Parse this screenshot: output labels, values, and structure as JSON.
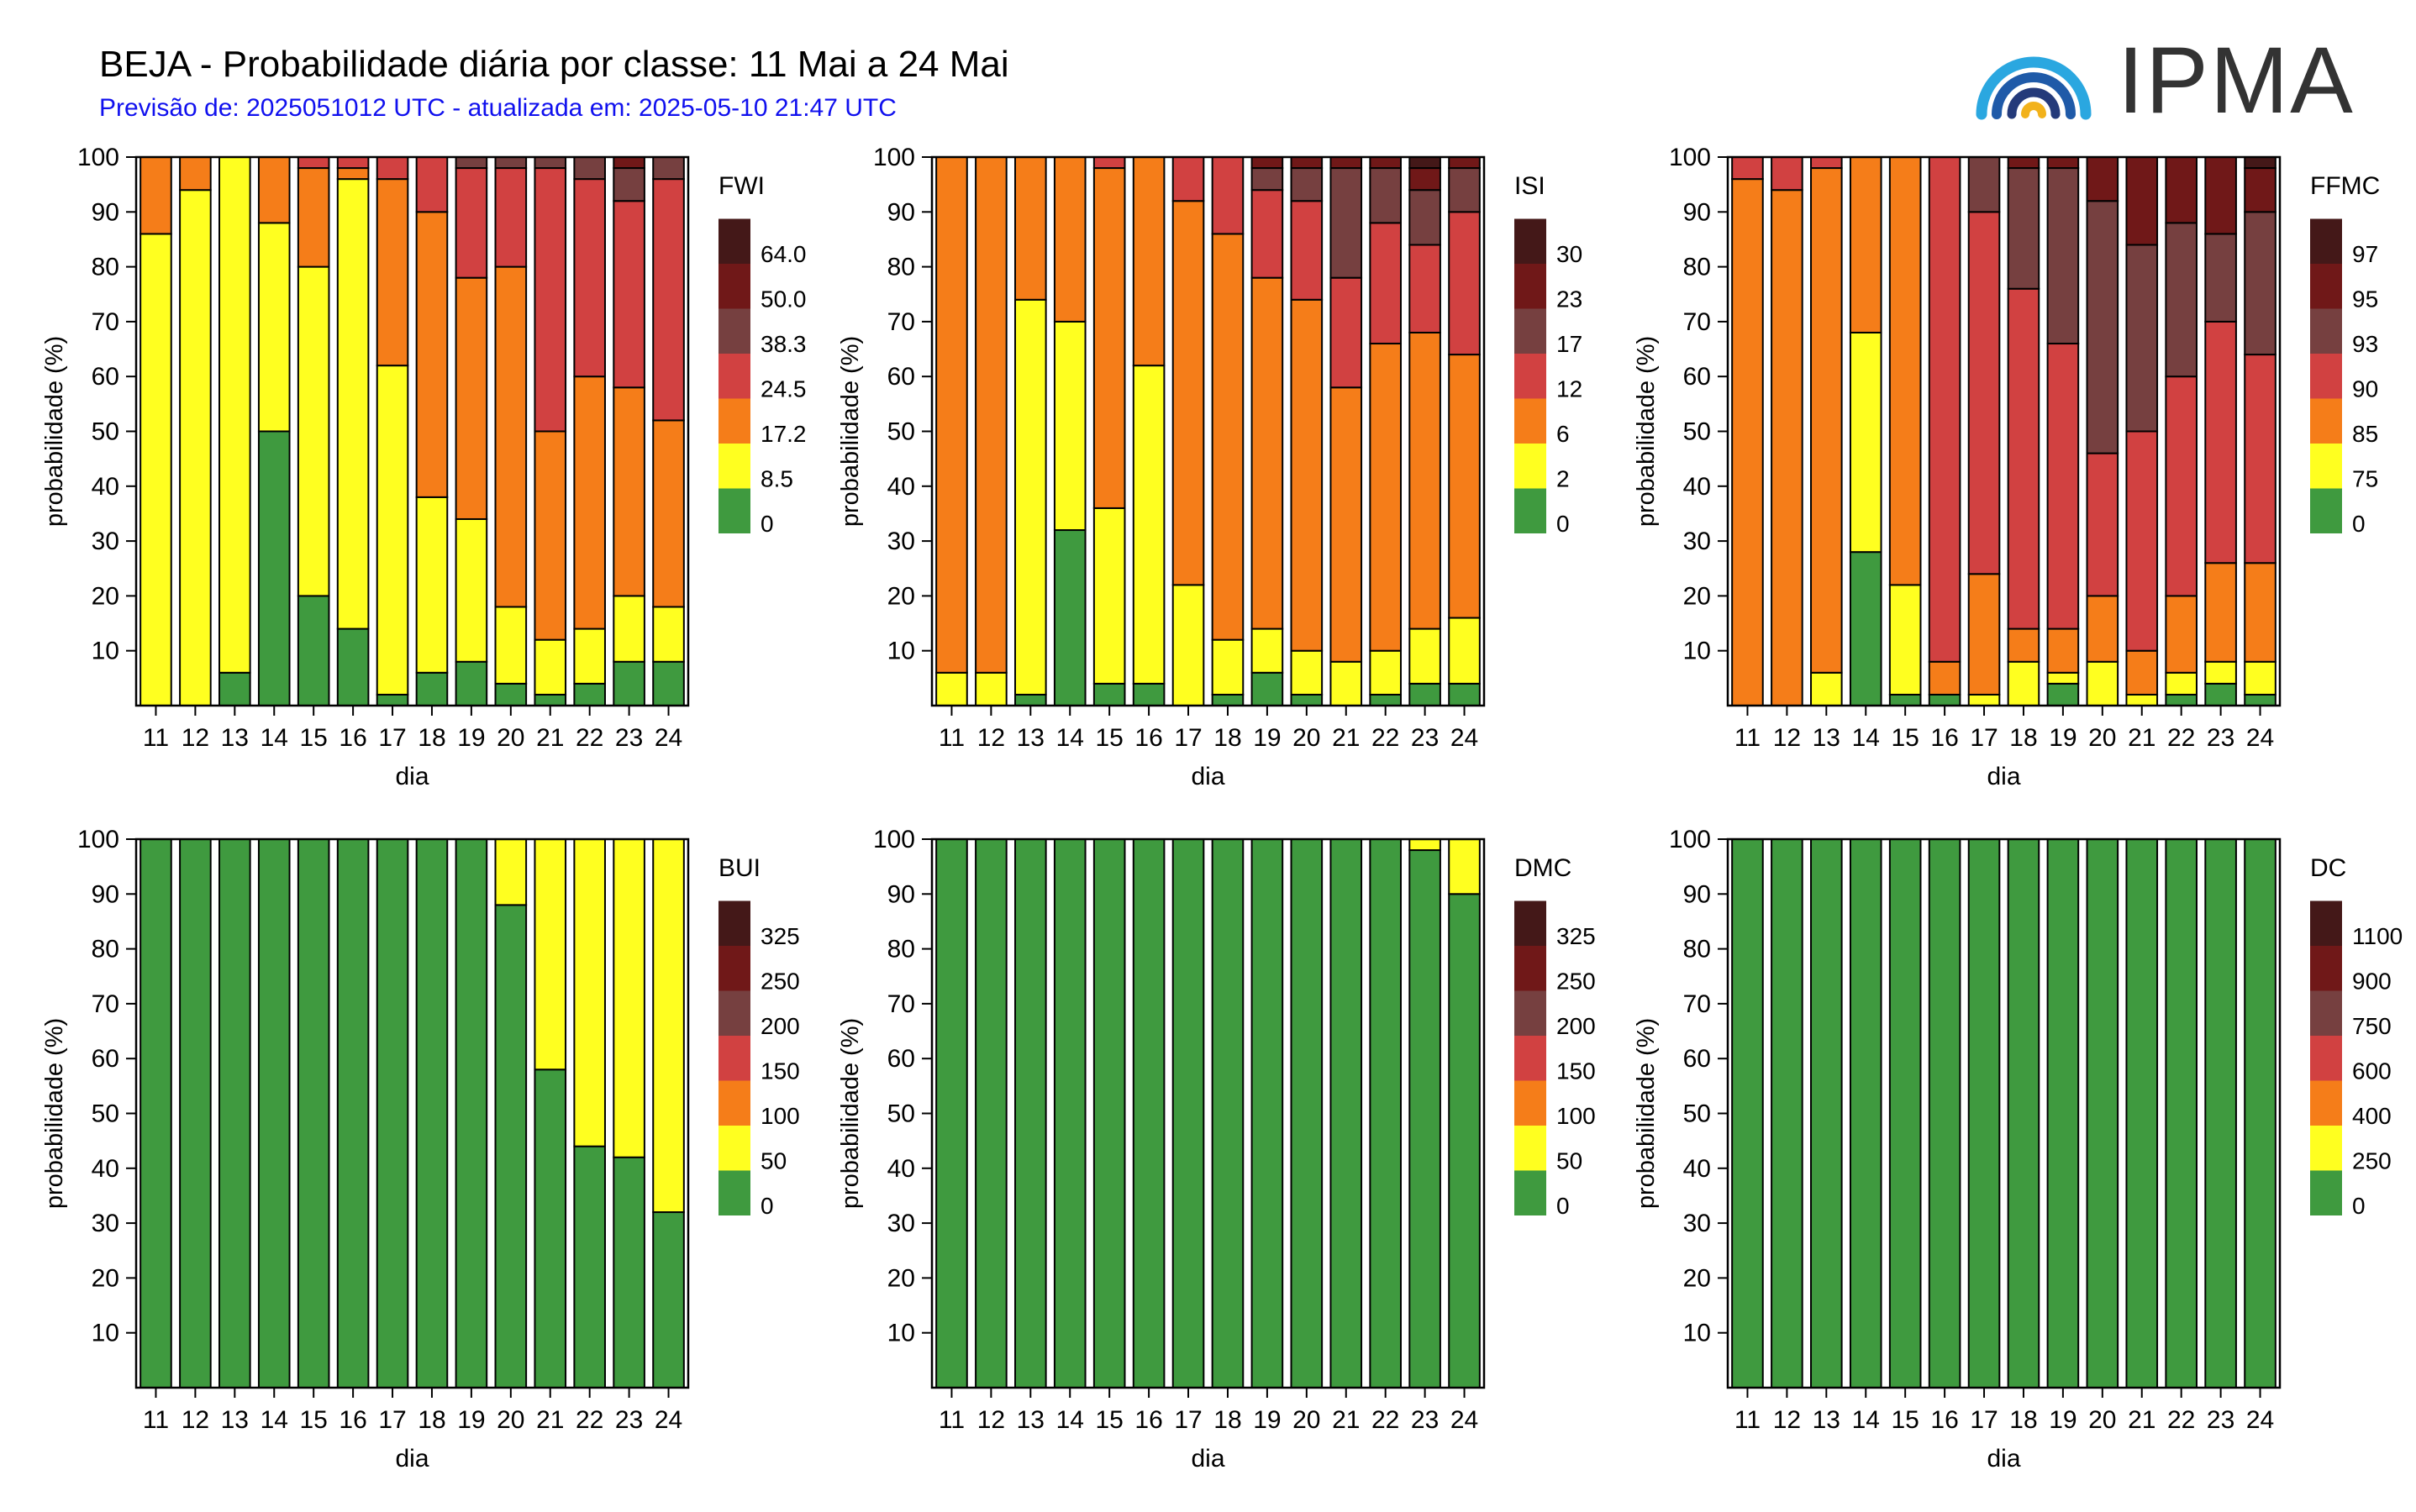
{
  "header": {
    "title": "BEJA - Probabilidade diária por classe: 11 Mai a 24 Mai",
    "subtitle": "Previsão de: 2025051012 UTC - atualizada em: 2025-05-10 21:47 UTC",
    "logo_text": "IPMA"
  },
  "class_colors": [
    "#3f9a3f",
    "#ffff20",
    "#f57d19",
    "#d14141",
    "#764040",
    "#701818",
    "#441818"
  ],
  "chart_data": [
    {
      "type": "bar",
      "stacked": true,
      "ylabel": "probabilidade (%)",
      "xlabel": "dia",
      "ylim": [
        0,
        100
      ],
      "yticks": [
        10,
        20,
        30,
        40,
        50,
        60,
        70,
        80,
        90,
        100
      ],
      "categories": [
        "11",
        "12",
        "13",
        "14",
        "15",
        "16",
        "17",
        "18",
        "19",
        "20",
        "21",
        "22",
        "23",
        "24"
      ],
      "legend_title": "FWI",
      "legend_labels": [
        "0",
        "8.5",
        "17.2",
        "24.5",
        "38.3",
        "50.0",
        "64.0"
      ],
      "series": [
        {
          "values": [
            0,
            0,
            6,
            50,
            20,
            14,
            2,
            6,
            8,
            4,
            2,
            4,
            8,
            8
          ]
        },
        {
          "values": [
            86,
            94,
            94,
            38,
            60,
            82,
            60,
            32,
            26,
            14,
            10,
            10,
            12,
            10
          ]
        },
        {
          "values": [
            14,
            6,
            0,
            12,
            18,
            2,
            34,
            52,
            44,
            62,
            38,
            46,
            38,
            34
          ]
        },
        {
          "values": [
            0,
            0,
            0,
            0,
            2,
            2,
            4,
            10,
            20,
            18,
            48,
            36,
            34,
            44
          ]
        },
        {
          "values": [
            0,
            0,
            0,
            0,
            0,
            0,
            0,
            0,
            2,
            2,
            2,
            4,
            6,
            4
          ]
        },
        {
          "values": [
            0,
            0,
            0,
            0,
            0,
            0,
            0,
            0,
            0,
            0,
            0,
            0,
            2,
            0
          ]
        },
        {
          "values": [
            0,
            0,
            0,
            0,
            0,
            0,
            0,
            0,
            0,
            0,
            0,
            0,
            0,
            0
          ]
        }
      ]
    },
    {
      "type": "bar",
      "stacked": true,
      "ylabel": "probabilidade (%)",
      "xlabel": "dia",
      "ylim": [
        0,
        100
      ],
      "yticks": [
        10,
        20,
        30,
        40,
        50,
        60,
        70,
        80,
        90,
        100
      ],
      "categories": [
        "11",
        "12",
        "13",
        "14",
        "15",
        "16",
        "17",
        "18",
        "19",
        "20",
        "21",
        "22",
        "23",
        "24"
      ],
      "legend_title": "ISI",
      "legend_labels": [
        "0",
        "2",
        "6",
        "12",
        "17",
        "23",
        "30"
      ],
      "series": [
        {
          "values": [
            0,
            0,
            2,
            32,
            4,
            4,
            0,
            2,
            6,
            2,
            0,
            2,
            4,
            4
          ]
        },
        {
          "values": [
            6,
            6,
            72,
            38,
            32,
            58,
            22,
            10,
            8,
            8,
            8,
            8,
            10,
            12
          ]
        },
        {
          "values": [
            94,
            94,
            26,
            30,
            62,
            38,
            70,
            74,
            64,
            64,
            50,
            56,
            54,
            48
          ]
        },
        {
          "values": [
            0,
            0,
            0,
            0,
            2,
            0,
            8,
            14,
            16,
            18,
            20,
            22,
            16,
            26
          ]
        },
        {
          "values": [
            0,
            0,
            0,
            0,
            0,
            0,
            0,
            0,
            4,
            6,
            20,
            10,
            10,
            8
          ]
        },
        {
          "values": [
            0,
            0,
            0,
            0,
            0,
            0,
            0,
            0,
            2,
            2,
            2,
            2,
            4,
            2
          ]
        },
        {
          "values": [
            0,
            0,
            0,
            0,
            0,
            0,
            0,
            0,
            0,
            0,
            0,
            0,
            2,
            0
          ]
        }
      ]
    },
    {
      "type": "bar",
      "stacked": true,
      "ylabel": "probabilidade (%)",
      "xlabel": "dia",
      "ylim": [
        0,
        100
      ],
      "yticks": [
        10,
        20,
        30,
        40,
        50,
        60,
        70,
        80,
        90,
        100
      ],
      "categories": [
        "11",
        "12",
        "13",
        "14",
        "15",
        "16",
        "17",
        "18",
        "19",
        "20",
        "21",
        "22",
        "23",
        "24"
      ],
      "legend_title": "FFMC",
      "legend_labels": [
        "0",
        "75",
        "85",
        "90",
        "93",
        "95",
        "97"
      ],
      "series": [
        {
          "values": [
            0,
            0,
            0,
            28,
            2,
            2,
            0,
            0,
            4,
            0,
            0,
            2,
            4,
            2
          ]
        },
        {
          "values": [
            0,
            0,
            6,
            40,
            20,
            0,
            2,
            8,
            2,
            8,
            2,
            4,
            4,
            6
          ]
        },
        {
          "values": [
            96,
            94,
            92,
            32,
            78,
            6,
            22,
            6,
            8,
            12,
            8,
            14,
            18,
            18
          ]
        },
        {
          "values": [
            4,
            6,
            2,
            0,
            0,
            92,
            66,
            62,
            52,
            26,
            40,
            40,
            44,
            38
          ]
        },
        {
          "values": [
            0,
            0,
            0,
            0,
            0,
            0,
            10,
            22,
            32,
            46,
            34,
            28,
            16,
            26
          ]
        },
        {
          "values": [
            0,
            0,
            0,
            0,
            0,
            0,
            0,
            2,
            2,
            8,
            16,
            12,
            14,
            8
          ]
        },
        {
          "values": [
            0,
            0,
            0,
            0,
            0,
            0,
            0,
            0,
            0,
            0,
            0,
            0,
            0,
            2
          ]
        }
      ]
    },
    {
      "type": "bar",
      "stacked": true,
      "ylabel": "probabilidade (%)",
      "xlabel": "dia",
      "ylim": [
        0,
        100
      ],
      "yticks": [
        10,
        20,
        30,
        40,
        50,
        60,
        70,
        80,
        90,
        100
      ],
      "categories": [
        "11",
        "12",
        "13",
        "14",
        "15",
        "16",
        "17",
        "18",
        "19",
        "20",
        "21",
        "22",
        "23",
        "24"
      ],
      "legend_title": "BUI",
      "legend_labels": [
        "0",
        "50",
        "100",
        "150",
        "200",
        "250",
        "325"
      ],
      "series": [
        {
          "values": [
            100,
            100,
            100,
            100,
            100,
            100,
            100,
            100,
            100,
            88,
            58,
            44,
            42,
            32
          ]
        },
        {
          "values": [
            0,
            0,
            0,
            0,
            0,
            0,
            0,
            0,
            0,
            12,
            42,
            56,
            58,
            68
          ]
        },
        {
          "values": [
            0,
            0,
            0,
            0,
            0,
            0,
            0,
            0,
            0,
            0,
            0,
            0,
            0,
            0
          ]
        },
        {
          "values": [
            0,
            0,
            0,
            0,
            0,
            0,
            0,
            0,
            0,
            0,
            0,
            0,
            0,
            0
          ]
        },
        {
          "values": [
            0,
            0,
            0,
            0,
            0,
            0,
            0,
            0,
            0,
            0,
            0,
            0,
            0,
            0
          ]
        },
        {
          "values": [
            0,
            0,
            0,
            0,
            0,
            0,
            0,
            0,
            0,
            0,
            0,
            0,
            0,
            0
          ]
        },
        {
          "values": [
            0,
            0,
            0,
            0,
            0,
            0,
            0,
            0,
            0,
            0,
            0,
            0,
            0,
            0
          ]
        }
      ]
    },
    {
      "type": "bar",
      "stacked": true,
      "ylabel": "probabilidade (%)",
      "xlabel": "dia",
      "ylim": [
        0,
        100
      ],
      "yticks": [
        10,
        20,
        30,
        40,
        50,
        60,
        70,
        80,
        90,
        100
      ],
      "categories": [
        "11",
        "12",
        "13",
        "14",
        "15",
        "16",
        "17",
        "18",
        "19",
        "20",
        "21",
        "22",
        "23",
        "24"
      ],
      "legend_title": "DMC",
      "legend_labels": [
        "0",
        "50",
        "100",
        "150",
        "200",
        "250",
        "325"
      ],
      "series": [
        {
          "values": [
            100,
            100,
            100,
            100,
            100,
            100,
            100,
            100,
            100,
            100,
            100,
            100,
            98,
            90
          ]
        },
        {
          "values": [
            0,
            0,
            0,
            0,
            0,
            0,
            0,
            0,
            0,
            0,
            0,
            0,
            2,
            10
          ]
        },
        {
          "values": [
            0,
            0,
            0,
            0,
            0,
            0,
            0,
            0,
            0,
            0,
            0,
            0,
            0,
            0
          ]
        },
        {
          "values": [
            0,
            0,
            0,
            0,
            0,
            0,
            0,
            0,
            0,
            0,
            0,
            0,
            0,
            0
          ]
        },
        {
          "values": [
            0,
            0,
            0,
            0,
            0,
            0,
            0,
            0,
            0,
            0,
            0,
            0,
            0,
            0
          ]
        },
        {
          "values": [
            0,
            0,
            0,
            0,
            0,
            0,
            0,
            0,
            0,
            0,
            0,
            0,
            0,
            0
          ]
        },
        {
          "values": [
            0,
            0,
            0,
            0,
            0,
            0,
            0,
            0,
            0,
            0,
            0,
            0,
            0,
            0
          ]
        }
      ]
    },
    {
      "type": "bar",
      "stacked": true,
      "ylabel": "probabilidade (%)",
      "xlabel": "dia",
      "ylim": [
        0,
        100
      ],
      "yticks": [
        10,
        20,
        30,
        40,
        50,
        60,
        70,
        80,
        90,
        100
      ],
      "categories": [
        "11",
        "12",
        "13",
        "14",
        "15",
        "16",
        "17",
        "18",
        "19",
        "20",
        "21",
        "22",
        "23",
        "24"
      ],
      "legend_title": "DC",
      "legend_labels": [
        "0",
        "250",
        "400",
        "600",
        "750",
        "900",
        "1100"
      ],
      "series": [
        {
          "values": [
            100,
            100,
            100,
            100,
            100,
            100,
            100,
            100,
            100,
            100,
            100,
            100,
            100,
            100
          ]
        },
        {
          "values": [
            0,
            0,
            0,
            0,
            0,
            0,
            0,
            0,
            0,
            0,
            0,
            0,
            0,
            0
          ]
        },
        {
          "values": [
            0,
            0,
            0,
            0,
            0,
            0,
            0,
            0,
            0,
            0,
            0,
            0,
            0,
            0
          ]
        },
        {
          "values": [
            0,
            0,
            0,
            0,
            0,
            0,
            0,
            0,
            0,
            0,
            0,
            0,
            0,
            0
          ]
        },
        {
          "values": [
            0,
            0,
            0,
            0,
            0,
            0,
            0,
            0,
            0,
            0,
            0,
            0,
            0,
            0
          ]
        },
        {
          "values": [
            0,
            0,
            0,
            0,
            0,
            0,
            0,
            0,
            0,
            0,
            0,
            0,
            0,
            0
          ]
        },
        {
          "values": [
            0,
            0,
            0,
            0,
            0,
            0,
            0,
            0,
            0,
            0,
            0,
            0,
            0,
            0
          ]
        }
      ]
    }
  ]
}
